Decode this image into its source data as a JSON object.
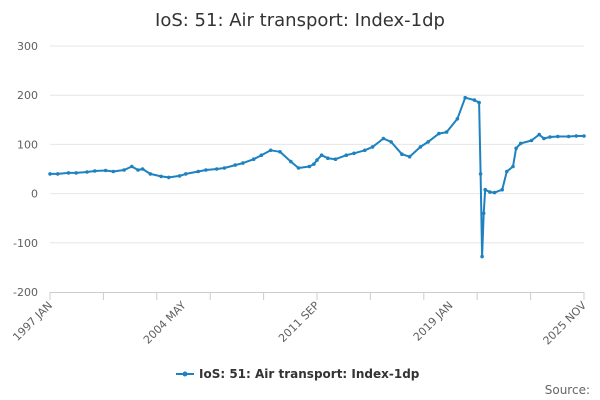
{
  "chart_data": {
    "type": "line",
    "title": "IoS: 51: Air transport: Index-1dp",
    "xlabel": "",
    "ylabel": "",
    "ylim": [
      -200,
      300
    ],
    "yticks": [
      -200,
      -100,
      0,
      100,
      200,
      300
    ],
    "x_tick_labels": [
      "1997 JAN",
      "2004 MAY",
      "2011 SEP",
      "2019 JAN",
      "2025 NOV"
    ],
    "grid": "horizontal",
    "legend": "bottom-center",
    "color": "#1f82c0",
    "source_label": "Source:",
    "series": [
      {
        "name": "IoS: 51: Air transport: Index-1dp",
        "points": [
          [
            "1997-01",
            40
          ],
          [
            "1997-06",
            40
          ],
          [
            "1998-01",
            42
          ],
          [
            "1998-06",
            42
          ],
          [
            "1999-01",
            44
          ],
          [
            "1999-06",
            46
          ],
          [
            "2000-01",
            47
          ],
          [
            "2000-06",
            45
          ],
          [
            "2001-01",
            48
          ],
          [
            "2001-06",
            55
          ],
          [
            "2001-10",
            48
          ],
          [
            "2002-01",
            50
          ],
          [
            "2002-06",
            40
          ],
          [
            "2003-01",
            35
          ],
          [
            "2003-06",
            33
          ],
          [
            "2004-01",
            36
          ],
          [
            "2004-05",
            40
          ],
          [
            "2005-01",
            45
          ],
          [
            "2005-06",
            48
          ],
          [
            "2006-01",
            50
          ],
          [
            "2006-06",
            52
          ],
          [
            "2007-01",
            58
          ],
          [
            "2007-06",
            62
          ],
          [
            "2008-01",
            70
          ],
          [
            "2008-06",
            78
          ],
          [
            "2008-12",
            88
          ],
          [
            "2009-06",
            85
          ],
          [
            "2010-01",
            65
          ],
          [
            "2010-06",
            52
          ],
          [
            "2011-01",
            55
          ],
          [
            "2011-04",
            60
          ],
          [
            "2011-06",
            68
          ],
          [
            "2011-09",
            78
          ],
          [
            "2012-01",
            72
          ],
          [
            "2012-06",
            70
          ],
          [
            "2013-01",
            78
          ],
          [
            "2013-06",
            82
          ],
          [
            "2014-01",
            88
          ],
          [
            "2014-06",
            95
          ],
          [
            "2015-01",
            112
          ],
          [
            "2015-06",
            105
          ],
          [
            "2016-01",
            80
          ],
          [
            "2016-06",
            75
          ],
          [
            "2017-01",
            95
          ],
          [
            "2017-06",
            105
          ],
          [
            "2018-01",
            122
          ],
          [
            "2018-06",
            125
          ],
          [
            "2019-01",
            152
          ],
          [
            "2019-06",
            195
          ],
          [
            "2019-12",
            190
          ],
          [
            "2020-03",
            185
          ],
          [
            "2020-04",
            40
          ],
          [
            "2020-05",
            -128
          ],
          [
            "2020-06",
            -40
          ],
          [
            "2020-07",
            8
          ],
          [
            "2020-10",
            3
          ],
          [
            "2021-01",
            2
          ],
          [
            "2021-06",
            8
          ],
          [
            "2021-09",
            45
          ],
          [
            "2022-01",
            55
          ],
          [
            "2022-03",
            92
          ],
          [
            "2022-06",
            102
          ],
          [
            "2023-01",
            108
          ],
          [
            "2023-06",
            120
          ],
          [
            "2023-09",
            112
          ],
          [
            "2024-01",
            115
          ],
          [
            "2024-06",
            116
          ],
          [
            "2025-01",
            116
          ],
          [
            "2025-06",
            117
          ],
          [
            "2025-11",
            117
          ]
        ]
      }
    ]
  }
}
